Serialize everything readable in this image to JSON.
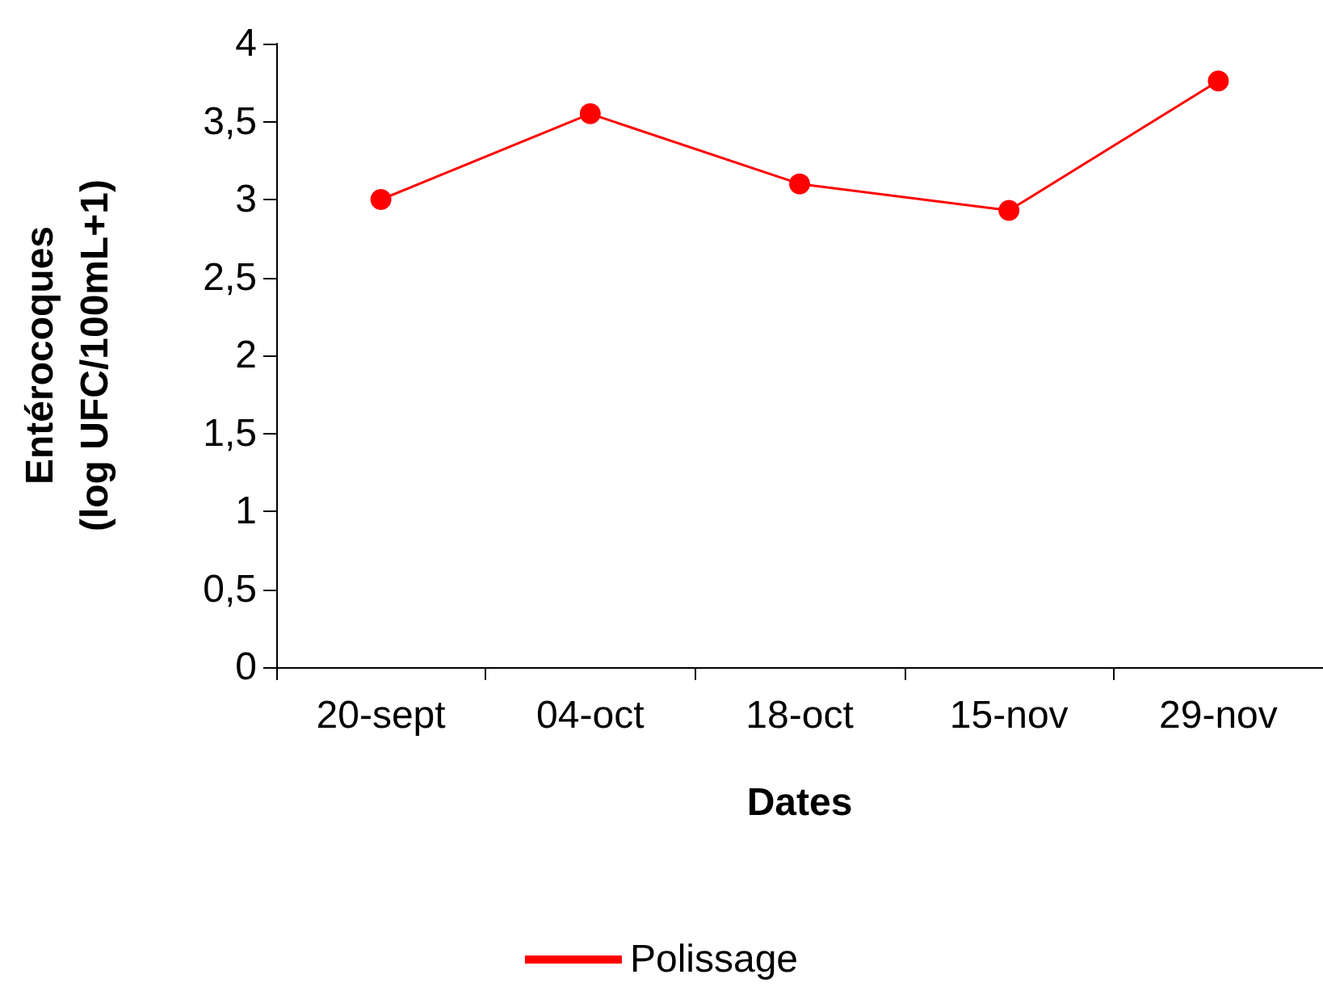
{
  "chart_data": {
    "type": "line",
    "xlabel": "Dates",
    "ylabel": "Entérocoques\n(log UFC/100mL+1)",
    "categories": [
      "20-sept",
      "04-oct",
      "18-oct",
      "15-nov",
      "29-nov"
    ],
    "series": [
      {
        "name": "Polissage",
        "color": "#ff0000",
        "values": [
          3.0,
          3.55,
          3.1,
          2.93,
          3.76
        ]
      }
    ],
    "ylim": [
      0,
      4
    ],
    "yticks": [
      0,
      {
        "value": 0.5,
        "label": "0,5"
      },
      1,
      {
        "value": 1.5,
        "label": "1,5"
      },
      2,
      {
        "value": 2.5,
        "label": "2,5"
      },
      3,
      {
        "value": 3.5,
        "label": "3,5"
      },
      4
    ],
    "grid": false,
    "legend": "bottom",
    "marker": "circle",
    "line_style": "solid"
  }
}
